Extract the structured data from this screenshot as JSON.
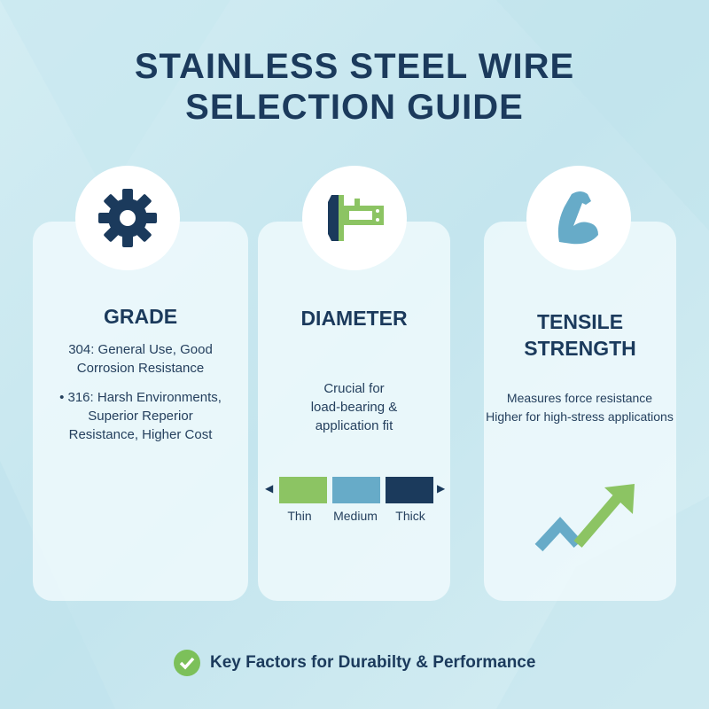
{
  "title": {
    "line1": "STAINLESS STEEL WIRE",
    "line2": "SELECTION GUIDE"
  },
  "colors": {
    "navy": "#1b3a5c",
    "green": "#8cc463",
    "blue": "#67abc8",
    "check": "#7cc05a"
  },
  "cards": [
    {
      "icon": "gear-icon",
      "title": "GRADE",
      "lines": [
        "304: General Use, Good",
        "Corrosion Resistance",
        "• 316: Harsh Environments,",
        "Superior Reperior",
        "Resistance, Higher Cost"
      ]
    },
    {
      "icon": "caliper-icon",
      "title": "DIAMETER",
      "lines": [
        "Crucial for",
        "load-bearing &",
        "application fit"
      ],
      "scale": [
        "Thin",
        "Medium",
        "Thick"
      ]
    },
    {
      "icon": "flexed-arm-icon",
      "title_line1": "TENSILE",
      "title_line2": "STRENGTH",
      "lines": [
        "Measures force resistance",
        "Higher for high-stress applications"
      ]
    }
  ],
  "footer": {
    "icon": "check-circle-icon",
    "text": "Key Factors for Durabilty & Performance"
  }
}
